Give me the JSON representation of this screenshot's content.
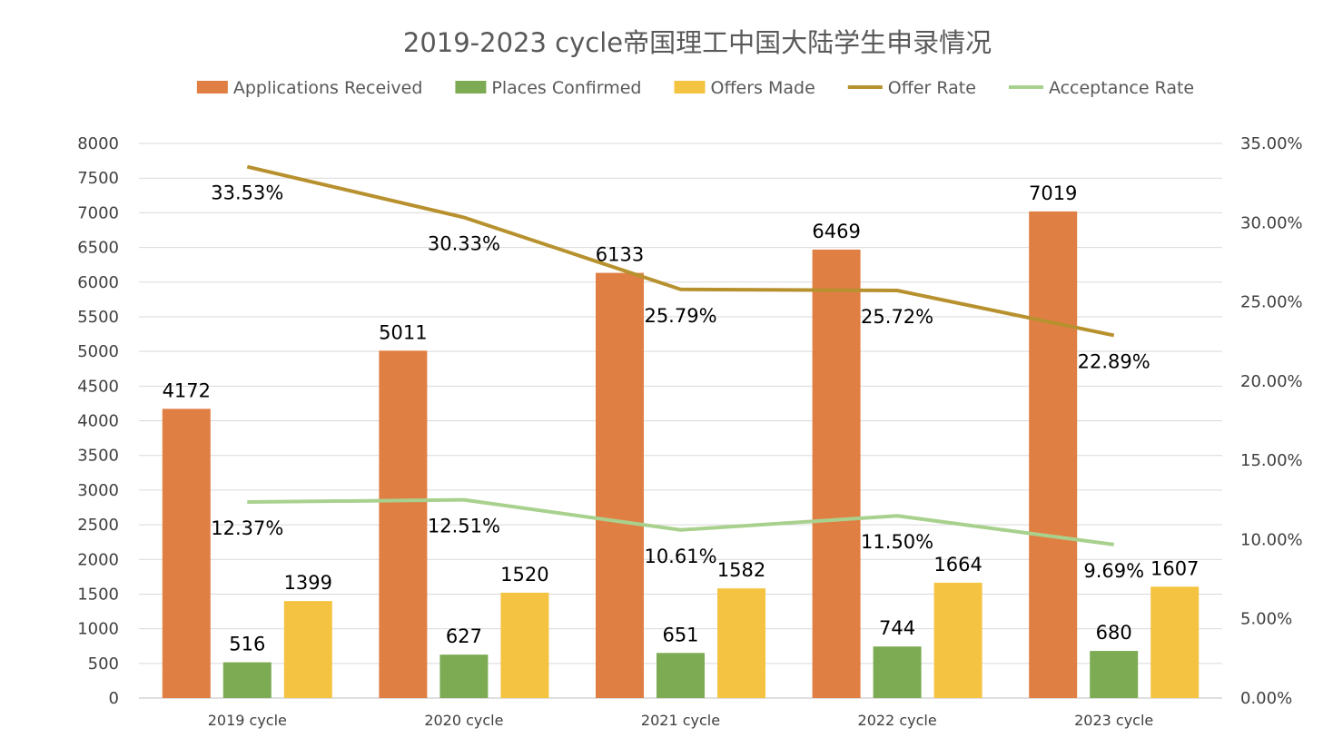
{
  "chart_data": {
    "type": "bar",
    "title": "2019-2023 cycle帝国理工中国大陆学生申录情况",
    "categories": [
      "2019 cycle",
      "2020 cycle",
      "2021 cycle",
      "2022 cycle",
      "2023 cycle"
    ],
    "series": [
      {
        "name": "Applications Received",
        "kind": "bar",
        "axis": "left",
        "color": "#E07F43",
        "values": [
          4172,
          5011,
          6133,
          6469,
          7019
        ],
        "labels": [
          "4172",
          "5011",
          "6133",
          "6469",
          "7019"
        ]
      },
      {
        "name": "Places Confirmed",
        "kind": "bar",
        "axis": "left",
        "color": "#7DAB53",
        "values": [
          516,
          627,
          651,
          744,
          680
        ],
        "labels": [
          "516",
          "627",
          "651",
          "744",
          "680"
        ]
      },
      {
        "name": "Offers Made",
        "kind": "bar",
        "axis": "left",
        "color": "#F4C342",
        "values": [
          1399,
          1520,
          1582,
          1664,
          1607
        ],
        "labels": [
          "1399",
          "1520",
          "1582",
          "1664",
          "1607"
        ]
      },
      {
        "name": "Offer Rate",
        "kind": "line",
        "axis": "right",
        "color": "#B8912F",
        "values": [
          33.53,
          30.33,
          25.79,
          25.72,
          22.89
        ],
        "labels": [
          "33.53%",
          "30.33%",
          "25.79%",
          "25.72%",
          "22.89%"
        ]
      },
      {
        "name": "Acceptance Rate",
        "kind": "line",
        "axis": "right",
        "color": "#A9D18E",
        "values": [
          12.37,
          12.51,
          10.61,
          11.5,
          9.69
        ],
        "labels": [
          "12.37%",
          "12.51%",
          "10.61%",
          "11.50%",
          "9.69%"
        ]
      }
    ],
    "y_left": {
      "min": 0,
      "max": 8000,
      "step": 500,
      "ticks": [
        "0",
        "500",
        "1000",
        "1500",
        "2000",
        "2500",
        "3000",
        "3500",
        "4000",
        "4500",
        "5000",
        "5500",
        "6000",
        "6500",
        "7000",
        "7500",
        "8000"
      ]
    },
    "y_right": {
      "min": 0,
      "max": 35,
      "step": 5,
      "ticks": [
        "0.00%",
        "5.00%",
        "10.00%",
        "15.00%",
        "20.00%",
        "25.00%",
        "30.00%",
        "35.00%"
      ]
    },
    "grid": true,
    "legend_position": "top"
  }
}
